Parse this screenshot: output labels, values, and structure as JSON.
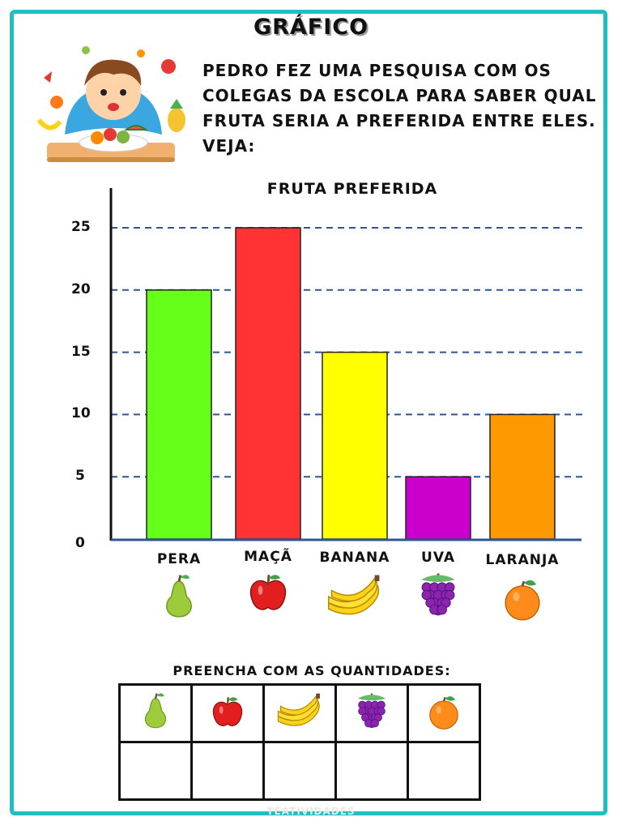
{
  "page": {
    "title": "GRÁFICO",
    "intro": "PEDRO FEZ UMA PESQUISA COM OS COLEGAS DA ESCOLA PARA SABER QUAL FRUTA SERIA A PREFERIDA ENTRE ELES. VEJA:",
    "fill_instruction": "PREENCHA COM AS QUANTIDADES:",
    "watermark": "TEATIVIDADES"
  },
  "colors": {
    "border": "#1ec0c6",
    "gridline": "#2f5597",
    "axis_x": "#2f5597"
  },
  "chart_data": {
    "type": "bar",
    "title": "FRUTA PREFERIDA",
    "categories": [
      "PERA",
      "MAÇÃ",
      "BANANA",
      "UVA",
      "LARANJA"
    ],
    "values": [
      20,
      25,
      15,
      5,
      10
    ],
    "bar_colors": [
      "#66ff1a",
      "#ff3333",
      "#ffff00",
      "#cc00cc",
      "#ff9900"
    ],
    "icons": [
      "pear-icon",
      "apple-icon",
      "banana-icon",
      "grape-icon",
      "orange-icon"
    ],
    "yticks": [
      "0",
      "5",
      "10",
      "15",
      "20",
      "25"
    ],
    "ylim": [
      0,
      25
    ],
    "xlabel": "",
    "ylabel": "",
    "grid": true,
    "gridline_style": "dashed"
  },
  "fill_table": {
    "icons": [
      "pear-icon",
      "apple-icon",
      "banana-icon",
      "grape-icon",
      "orange-icon"
    ],
    "answers": [
      "",
      "",
      "",
      "",
      ""
    ]
  }
}
